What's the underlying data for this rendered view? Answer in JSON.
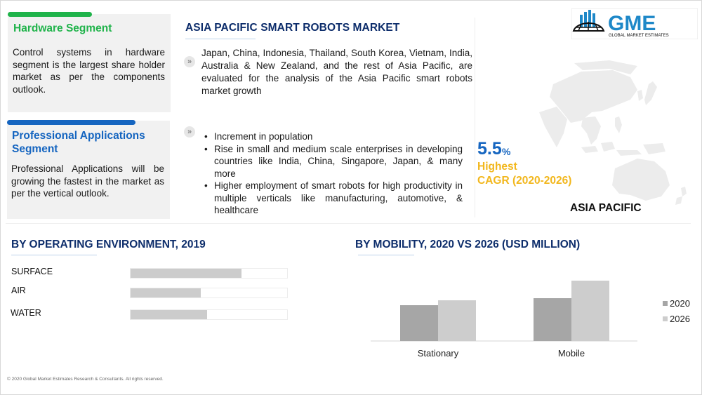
{
  "segments": {
    "hardware": {
      "title": "Hardware Segment",
      "text": "Control systems in hardware segment is the largest share holder market as per the components outlook.",
      "color": "#1fb34a"
    },
    "professional": {
      "title": "Professional Applications Segment",
      "text": "Professional Applications will be growing the fastest in the market as per the vertical outlook.",
      "color": "#1565c0"
    }
  },
  "main": {
    "title": "ASIA PACIFIC SMART ROBOTS MARKET",
    "intro": "Japan, China, Indonesia, Thailand, South Korea, Vietnam, India, Australia & New Zealand, and the rest of Asia Pacific, are evaluated for the analysis of the Asia Pacific smart robots market growth",
    "drivers": [
      "Increment in population",
      "Rise in small and medium scale enterprises in developing countries like India, China, Singapore, Japan, & many more",
      "Higher employment of smart robots for high productivity in multiple verticals like manufacturing, automotive, & healthcare"
    ]
  },
  "logo": {
    "text": "GME",
    "subtext": "GLOBAL MARKET ESTIMATES",
    "color": "#1e88c8"
  },
  "cagr": {
    "value": "5.5",
    "unit": "%",
    "line1": "Highest",
    "line2": "CAGR (2020-2026)",
    "value_color": "#1565c0",
    "label_color": "#f2b71d"
  },
  "region": {
    "label": "ASIA PACIFIC"
  },
  "chart_data": [
    {
      "type": "bar",
      "orientation": "horizontal",
      "title": "BY  OPERATING ENVIRONMENT, 2019",
      "categories": [
        "SURFACE",
        "AIR",
        "WATER"
      ],
      "values": [
        71,
        45,
        49
      ],
      "xlim": [
        0,
        100
      ],
      "color": "#cccccc"
    },
    {
      "type": "bar",
      "title": "BY MOBILITY,  2020 VS 2026 (USD MILLION)",
      "categories": [
        "Stationary",
        "Mobile"
      ],
      "series": [
        {
          "name": "2020",
          "values": [
            51,
            61
          ],
          "color": "#a6a6a6"
        },
        {
          "name": "2026",
          "values": [
            58,
            86
          ],
          "color": "#cdcdcd"
        }
      ],
      "ylim": [
        0,
        100
      ],
      "legend": "right",
      "grid": false
    }
  ],
  "footer": "© 2020 Global Market Estimates Research & Consultants. All rights reserved."
}
